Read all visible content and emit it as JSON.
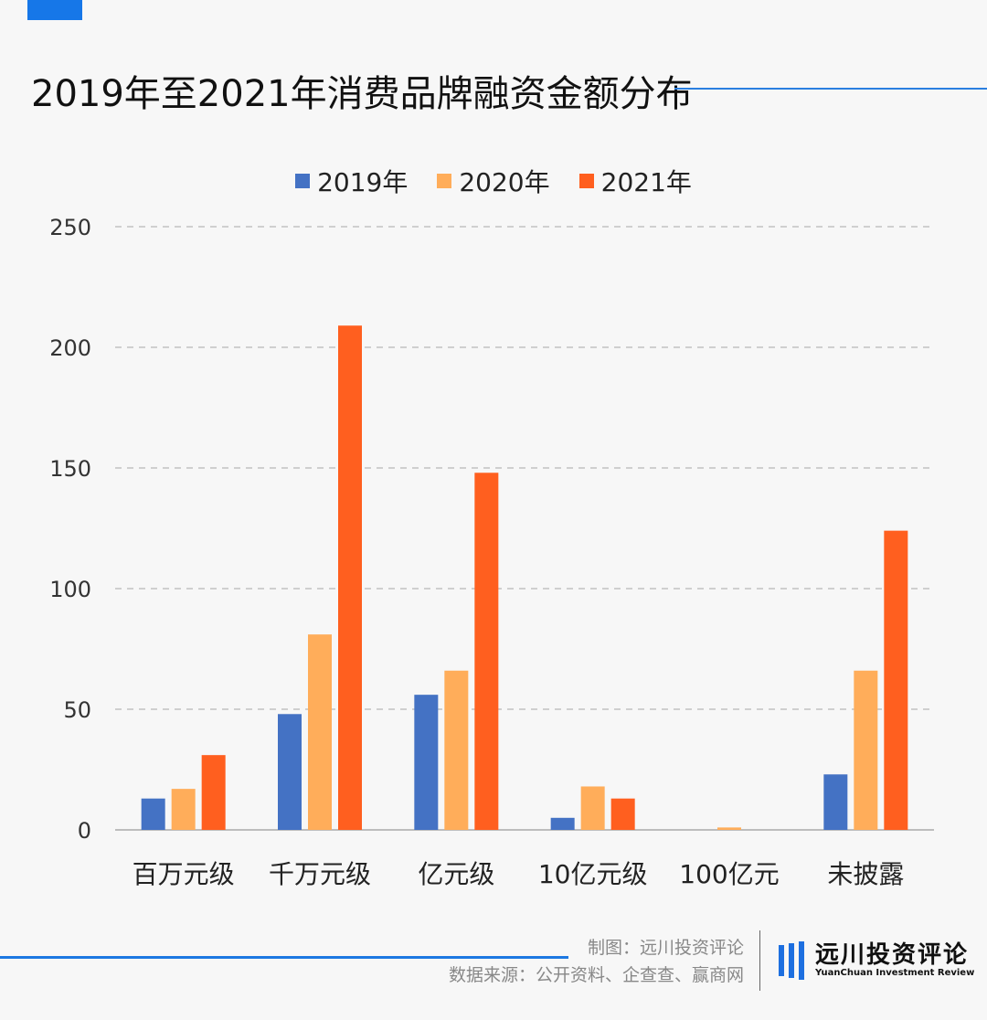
{
  "title": "2019年至2021年消费品牌融资金额分布",
  "colors": {
    "accent": "#1677e8",
    "s2019": "#4472c4",
    "s2020": "#ffad5a",
    "s2021": "#ff5f1f"
  },
  "footer": {
    "credit": "制图：远川投资评论",
    "source": "数据来源：公开资料、企查查、赢商网",
    "brand_cn": "远川投资评论",
    "brand_en": "YuanChuan Investment Review"
  },
  "chart_data": {
    "type": "bar",
    "title": "2019年至2021年消费品牌融资金额分布",
    "categories": [
      "百万元级",
      "千万元级",
      "亿元级",
      "10亿元级",
      "100亿元",
      "未披露"
    ],
    "series": [
      {
        "name": "2019年",
        "values": [
          13,
          48,
          56,
          5,
          0,
          23
        ]
      },
      {
        "name": "2020年",
        "values": [
          17,
          81,
          66,
          18,
          1,
          66
        ]
      },
      {
        "name": "2021年",
        "values": [
          31,
          209,
          148,
          13,
          0,
          124
        ]
      }
    ],
    "yticks": [
      "0",
      "50",
      "100",
      "150",
      "200",
      "250"
    ],
    "ylim": [
      0,
      250
    ],
    "grid": true,
    "legend": "top-center",
    "xlabel": "",
    "ylabel": ""
  }
}
